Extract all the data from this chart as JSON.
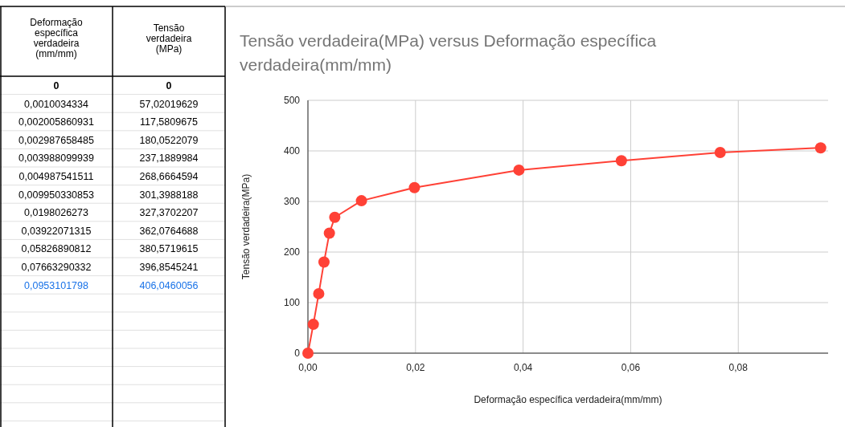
{
  "chart_data": [
    {
      "type": "other",
      "annotations": [
        "Deformação específica verdadeira (mm/mm)",
        "Tensão verdadeira (MPa)",
        "0",
        "0",
        "0,0010034334",
        "57,02019629",
        "0,002005860931",
        "117,5809675",
        "0,002987658485",
        "180,0522079",
        "0,003988099939",
        "237,1889984",
        "0,004987541511",
        "268,6664594",
        "0,009950330853",
        "301,3988188",
        "0,0198026273",
        "327,3702207",
        "0,03922071315",
        "362,0764688",
        "0,05826890812",
        "380,5719615",
        "0,07663290332",
        "396,8545241",
        "0,0953101798",
        "406,0460056"
      ]
    },
    {
      "type": "line",
      "title": "Tensão verdadeira(MPa) versus Deformação específica verdadeira(mm/mm)",
      "xlabel": "Deformação específica verdadeira(mm/mm)",
      "ylabel": "Tensão verdadeira(MPa)",
      "x": [
        0,
        0.0010034334,
        0.002005860931,
        0.002987658485,
        0.003988099939,
        0.004987541511,
        0.009950330853,
        0.0198026273,
        0.03922071315,
        0.05826890812,
        0.07663290332,
        0.0953101798
      ],
      "series": [
        {
          "color": "#ff4136",
          "values": [
            0,
            57.02019629,
            117.5809675,
            180.0522079,
            237.1889984,
            268.6664594,
            301.3988188,
            327.3702207,
            362.0764688,
            380.5719615,
            396.8545241,
            406.0460056
          ]
        }
      ],
      "xlim": [
        0,
        0.0967
      ],
      "ylim": [
        0,
        500
      ],
      "xticks": [
        {
          "value": 0,
          "label": "0,00"
        },
        {
          "value": 0.02,
          "label": "0,02"
        },
        {
          "value": 0.04,
          "label": "0,04"
        },
        {
          "value": 0.06,
          "label": "0,06"
        },
        {
          "value": 0.08,
          "label": "0,08"
        }
      ],
      "yticks": [
        0,
        100,
        200,
        300,
        400,
        500
      ],
      "grid": true,
      "marker": "circle",
      "line_style": "solid"
    }
  ]
}
